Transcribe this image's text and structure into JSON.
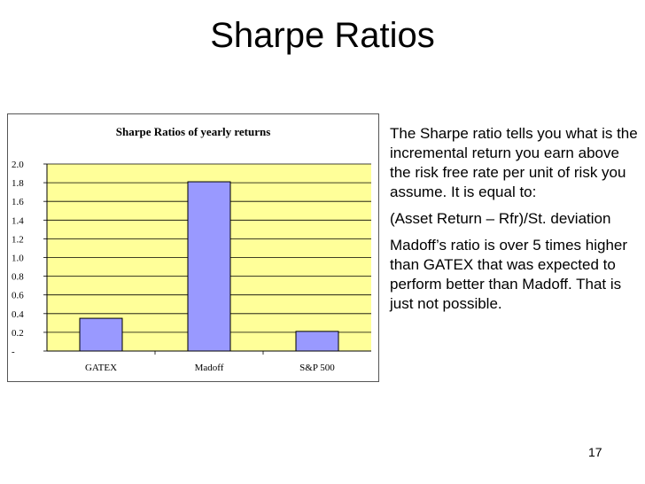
{
  "slide": {
    "title": "Sharpe Ratios",
    "paragraphs": [
      "The Sharpe ratio tells you what is the incremental return you earn above the risk free rate per unit of risk you assume.  It is equal to:",
      "(Asset Return – Rfr)/St. deviation",
      "Madoff’s ratio is over 5 times higher than GATEX that was expected to perform better than Madoff.  That is just not possible."
    ],
    "page_number": "17"
  },
  "colors": {
    "plot_background": "#ffff99",
    "bar_fill": "#9999ff",
    "bar_stroke": "#000000"
  },
  "chart_data": {
    "type": "bar",
    "title": "Sharpe Ratios of yearly returns",
    "categories": [
      "GATEX",
      "Madoff",
      "S&P 500"
    ],
    "values": [
      0.35,
      1.81,
      0.21
    ],
    "ylim": [
      0,
      2.0
    ],
    "yticks": [
      0,
      0.2,
      0.4,
      0.6,
      0.8,
      1.0,
      1.2,
      1.4,
      1.6,
      1.8,
      2.0
    ],
    "ytick_labels": [
      "-",
      "0.2",
      "0.4",
      "0.6",
      "0.8",
      "1.0",
      "1.2",
      "1.4",
      "1.6",
      "1.8",
      "2.0"
    ],
    "grid": true,
    "legend": false
  }
}
